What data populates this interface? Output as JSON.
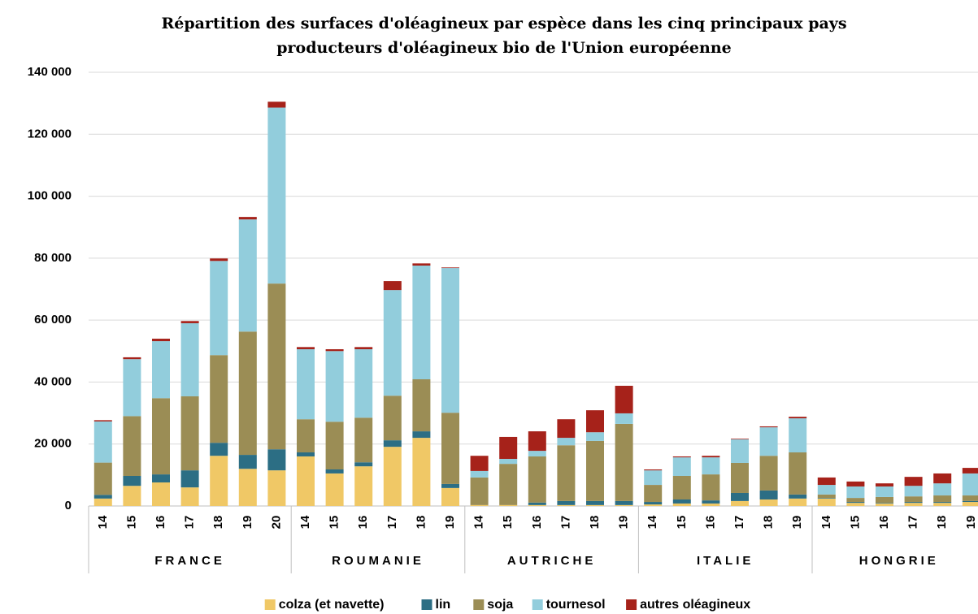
{
  "chart_data": {
    "type": "stacked_bar",
    "title": [
      "Répartition des surfaces d'oléagineux par espèce dans les cinq principaux pays",
      "producteurs d'oléagineux bio de l'Union européenne"
    ],
    "groups": [
      {
        "name": "FRANCE",
        "categories": [
          "14",
          "15",
          "16",
          "17",
          "18",
          "19",
          "20"
        ]
      },
      {
        "name": "ROUMANIE",
        "categories": [
          "14",
          "15",
          "16",
          "17",
          "18",
          "19"
        ]
      },
      {
        "name": "AUTRICHE",
        "categories": [
          "14",
          "15",
          "16",
          "17",
          "18",
          "19"
        ]
      },
      {
        "name": "ITALIE",
        "categories": [
          "14",
          "15",
          "16",
          "17",
          "18",
          "19"
        ]
      },
      {
        "name": "HONGRIE",
        "categories": [
          "14",
          "15",
          "16",
          "17",
          "18",
          "19"
        ]
      }
    ],
    "series": [
      {
        "name": "colza (et navette)",
        "color": "#f0c866",
        "values": [
          2400,
          6500,
          7600,
          6000,
          16200,
          12000,
          11500,
          16000,
          10500,
          12800,
          19100,
          22000,
          5800,
          300,
          300,
          300,
          300,
          300,
          300,
          500,
          800,
          800,
          1600,
          2100,
          2400,
          2400,
          1000,
          800,
          1000,
          1000,
          1300
        ]
      },
      {
        "name": "lin",
        "color": "#2c6e84",
        "values": [
          1200,
          3200,
          2600,
          5500,
          4200,
          4500,
          6800,
          1300,
          1300,
          1300,
          2100,
          2100,
          1300,
          0,
          0,
          800,
          1300,
          1300,
          1300,
          800,
          1300,
          1000,
          2600,
          2900,
          1300,
          200,
          300,
          200,
          300,
          300,
          300
        ]
      },
      {
        "name": "soja",
        "color": "#9b8d55",
        "values": [
          10400,
          19300,
          24600,
          23900,
          28300,
          39800,
          53500,
          10700,
          15400,
          14400,
          14400,
          16800,
          23000,
          8900,
          13300,
          14900,
          18000,
          19400,
          24900,
          5500,
          7600,
          8400,
          9700,
          11200,
          13600,
          1100,
          1300,
          1900,
          1800,
          2100,
          1800
        ]
      },
      {
        "name": "tournesol",
        "color": "#92cddc",
        "values": [
          13300,
          18400,
          18400,
          23600,
          30400,
          36200,
          56800,
          22600,
          22800,
          22100,
          34100,
          36700,
          46700,
          2100,
          1600,
          1800,
          2400,
          2800,
          3400,
          4700,
          6000,
          5500,
          7600,
          9200,
          11000,
          3100,
          3700,
          3400,
          3400,
          3900,
          7100
        ]
      },
      {
        "name": "autres oléagineux",
        "color": "#a6221a",
        "values": [
          400,
          600,
          800,
          700,
          800,
          800,
          1900,
          700,
          600,
          700,
          2900,
          700,
          200,
          4900,
          7100,
          6300,
          6000,
          7100,
          8900,
          300,
          300,
          500,
          200,
          300,
          500,
          2400,
          1600,
          1000,
          2900,
          3200,
          1800
        ]
      }
    ],
    "ylim": [
      0,
      140000
    ],
    "yticks": [
      0,
      {
        "value": 20000,
        "label": "20 000"
      },
      {
        "value": 40000,
        "label": "40 000"
      },
      {
        "value": 60000,
        "label": "60 000"
      },
      {
        "value": 80000,
        "label": "80 000"
      },
      {
        "value": 100000,
        "label": "100 000"
      },
      {
        "value": 120000,
        "label": "120 000"
      },
      {
        "value": 140000,
        "label": "140 000"
      }
    ],
    "grid": true,
    "legend": "bottom"
  }
}
